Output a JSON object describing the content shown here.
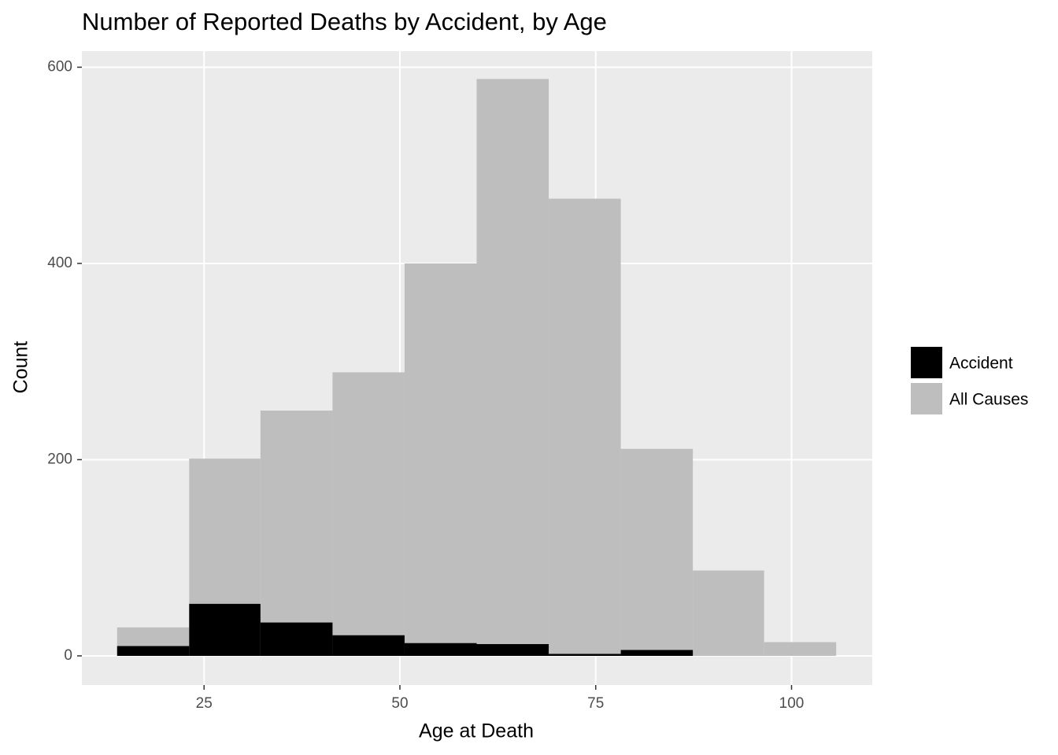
{
  "chart_data": {
    "type": "histogram",
    "title": "Number of Reported Deaths by Accident, by Age",
    "x_label": "Age at Death",
    "y_label": "Count",
    "bins": [
      13.9,
      23.1,
      32.2,
      41.4,
      50.6,
      59.8,
      69.0,
      78.2,
      87.4,
      96.5,
      105.7
    ],
    "series": [
      {
        "name": "Accident",
        "color": "#000000",
        "values": [
          10,
          53,
          34,
          21,
          13,
          12,
          2,
          6,
          0,
          0
        ]
      },
      {
        "name": "All Causes",
        "color": "#bebebe",
        "values": [
          29,
          201,
          250,
          289,
          400,
          588,
          466,
          211,
          87,
          14
        ]
      }
    ],
    "xlim": [
      9.4,
      110.3
    ],
    "ylim": [
      -29.7,
      616.4
    ],
    "xticks": [
      25,
      50,
      75,
      100
    ],
    "yticks": [
      0,
      200,
      400,
      600
    ],
    "grid": true,
    "legend": "right"
  }
}
